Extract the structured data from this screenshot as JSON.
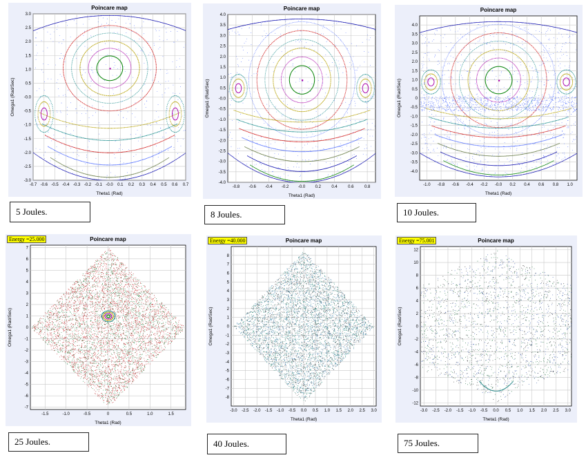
{
  "charts": [
    {
      "id": "p5",
      "type": "scatter",
      "title": "Poincare map",
      "xlabel": "Theta1 (Rad)",
      "ylabel": "Omega1 (Rad/Sec)",
      "xlim": [
        -0.7,
        0.7
      ],
      "ylim": [
        -3.0,
        3.0
      ],
      "xticks": [
        "-0.7",
        "-0.6",
        "-0.5",
        "-0.4",
        "-0.3",
        "-0.2",
        "-0.1",
        "-0.0",
        "0.1",
        "0.2",
        "0.3",
        "0.4",
        "0.5",
        "0.6",
        "0.7"
      ],
      "yticks": [
        "3.0",
        "2.5",
        "2.0",
        "1.5",
        "1.0",
        "0.5",
        "-0.0",
        "-0.5",
        "-1.0",
        "-1.5",
        "-2.0",
        "-2.5",
        "-3.0"
      ],
      "energy_label": "",
      "caption": "5 Joules.",
      "envelope": {
        "upper_a": 2.95,
        "upper_b": 2.4,
        "lower_a": -3.0,
        "lower_b": -2.0
      },
      "regime": "regular"
    },
    {
      "id": "p8",
      "type": "scatter",
      "title": "Poincare map",
      "xlabel": "Theta1 (Rad)",
      "ylabel": "Omega1 (Rad/Sec)",
      "xlim": [
        -0.9,
        0.9
      ],
      "ylim": [
        -4.0,
        4.0
      ],
      "xticks": [
        "-0.8",
        "-0.6",
        "-0.4",
        "-0.2",
        "-0.0",
        "0.2",
        "0.4",
        "0.6",
        "0.8"
      ],
      "yticks": [
        "4.0",
        "3.5",
        "3.0",
        "2.5",
        "2.0",
        "1.5",
        "1.0",
        "0.5",
        "-0.0",
        "-0.5",
        "-1.0",
        "-1.5",
        "-2.0",
        "-2.5",
        "-3.0",
        "-3.5",
        "-4.0"
      ],
      "energy_label": "",
      "caption": "8 Joules.",
      "envelope": {
        "upper_a": 3.8,
        "upper_b": 3.3,
        "lower_a": -4.0,
        "lower_b": -2.6
      },
      "regime": "regular"
    },
    {
      "id": "p10",
      "type": "scatter",
      "title": "Poincare map",
      "xlabel": "Theta1 (Rad)",
      "ylabel": "Omega1 (Rad/Sec)",
      "xlim": [
        -1.1,
        1.1
      ],
      "ylim": [
        -4.5,
        4.5
      ],
      "xticks": [
        "-1.0",
        "-0.8",
        "-0.6",
        "-0.4",
        "-0.2",
        "-0.0",
        "0.2",
        "0.4",
        "0.6",
        "0.8",
        "1.0"
      ],
      "yticks": [
        "4.0",
        "3.5",
        "3.0",
        "2.5",
        "2.0",
        "1.5",
        "1.0",
        "0.5",
        "0",
        "-0.5",
        "-1.0",
        "-1.5",
        "-2.0",
        "-2.5",
        "-3.0",
        "-3.5",
        "-4.0"
      ],
      "energy_label": "",
      "caption": "10 Joules.",
      "envelope": {
        "upper_a": 4.2,
        "upper_b": 3.6,
        "lower_a": -4.3,
        "lower_b": -3.0
      },
      "regime": "mixed"
    },
    {
      "id": "p25",
      "type": "scatter",
      "title": "Poincare map",
      "xlabel": "Theta1 (Rad)",
      "ylabel": "Omega1 (Rad/Sec)",
      "xlim": [
        -1.85,
        1.85
      ],
      "ylim": [
        -7.2,
        7.2
      ],
      "xticks": [
        "-1.5",
        "-1.0",
        "-0.5",
        "0",
        "0.5",
        "1.0",
        "1.5"
      ],
      "yticks": [
        "7",
        "6",
        "5",
        "4",
        "3",
        "2",
        "1",
        "0",
        "-1",
        "-2",
        "-3",
        "-4",
        "-5",
        "-6",
        "-7"
      ],
      "energy_label": "Energy =25.000",
      "caption": "25 Joules.",
      "envelope": {
        "shape": "diamond",
        "half_width": 1.85,
        "half_height": 7.0
      },
      "regime": "chaotic"
    },
    {
      "id": "p40",
      "type": "scatter",
      "title": "Poincare map",
      "xlabel": "Theta1 (Rad)",
      "ylabel": "Omega1 (Rad/Sec)",
      "xlim": [
        -3.1,
        3.1
      ],
      "ylim": [
        -9.0,
        9.0
      ],
      "xticks": [
        "-3.0",
        "-2.5",
        "-2.0",
        "-1.5",
        "-1.0",
        "-0.5",
        "0.0",
        "0.5",
        "1.0",
        "1.5",
        "2.0",
        "2.5",
        "3.0"
      ],
      "yticks": [
        "8",
        "7",
        "6",
        "5",
        "4",
        "3",
        "2",
        "1",
        "0",
        "-1",
        "-2",
        "-3",
        "-4",
        "-5",
        "-6",
        "-7",
        "-8"
      ],
      "energy_label": "Energy =40.000",
      "caption": "40 Joules.",
      "envelope": {
        "shape": "diamond",
        "half_width": 3.0,
        "half_height": 8.6
      },
      "regime": "chaotic"
    },
    {
      "id": "p75",
      "type": "scatter",
      "title": "Poincare map",
      "xlabel": "Theta1 (Rad)",
      "ylabel": "Omega1 (Rad/Sec)",
      "xlim": [
        -3.15,
        3.15
      ],
      "ylim": [
        -12.5,
        12.5
      ],
      "xticks": [
        "-3.0",
        "-2.5",
        "-2.0",
        "-1.5",
        "-1.0",
        "-0.5",
        "0.0",
        "0.5",
        "1.0",
        "1.5",
        "2.0",
        "2.5",
        "3.0"
      ],
      "yticks": [
        "12",
        "10",
        "8",
        "6",
        "4",
        "2",
        "0",
        "-2",
        "-4",
        "-6",
        "-8",
        "-10",
        "-12"
      ],
      "energy_label": "Energy =75.001",
      "caption": "75 Joules.",
      "envelope": {
        "shape": "wave",
        "top_center": 12.0,
        "top_side": 8.0,
        "bottom_center": -12.0,
        "bottom_side": -8.0
      },
      "regime": "chaotic"
    }
  ],
  "colors": {
    "grid": "#c8c8c8",
    "axes": "#000000",
    "badge": "#ffff00",
    "curves": [
      "#0000aa",
      "#008000",
      "#aa00aa",
      "#b5a000",
      "#008080",
      "#cc0000",
      "#4060ff",
      "#556b2f"
    ]
  }
}
